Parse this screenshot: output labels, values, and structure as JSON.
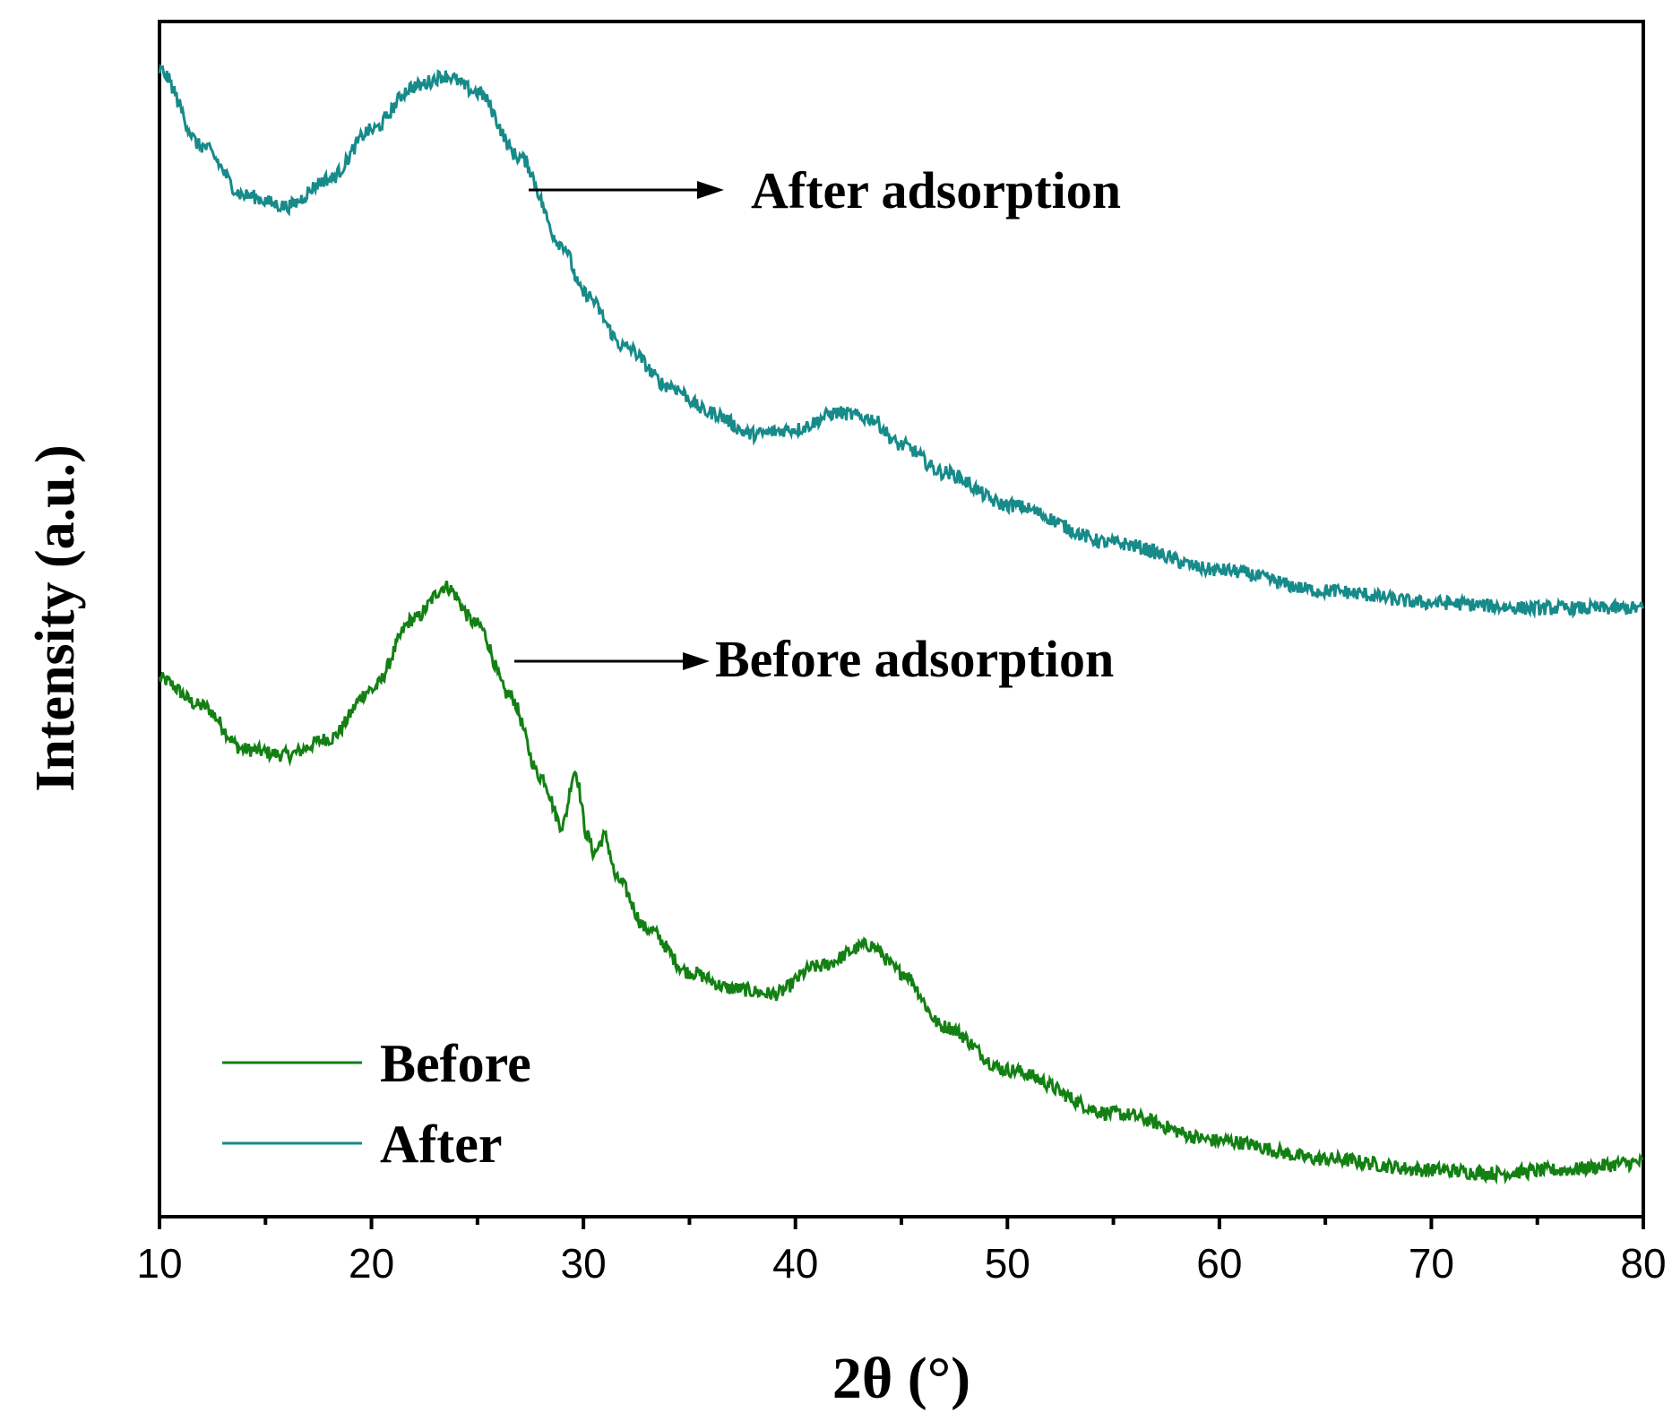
{
  "chart_data": {
    "type": "line",
    "title": "",
    "xlabel": "2θ (°)",
    "ylabel": "Intensity (a.u.)",
    "xlim": [
      10,
      80
    ],
    "ylim": [
      0,
      110
    ],
    "xticks": [
      10,
      20,
      30,
      40,
      50,
      60,
      70,
      80
    ],
    "xtick_labels": [
      "10",
      "20",
      "30",
      "40",
      "50",
      "60",
      "70",
      "80"
    ],
    "yticks": "none",
    "grid": false,
    "legend": {
      "position": "bottom-left",
      "entries": [
        {
          "name": "Before",
          "color": "#138013"
        },
        {
          "name": "After",
          "color": "#178a8a"
        }
      ]
    },
    "series": [
      {
        "name": "Before",
        "color": "#138013",
        "x": [
          10,
          12,
          14,
          16,
          18,
          20,
          22,
          23.5,
          25,
          26.5,
          28,
          29,
          29.6,
          30.2,
          30.5,
          31,
          31.6,
          33,
          35,
          37,
          39,
          41,
          43.5,
          45,
          47,
          50,
          55,
          60,
          65,
          70,
          73,
          76,
          80
        ],
        "y": [
          49.5,
          47,
          43,
          42.5,
          44,
          48.5,
          55,
          58,
          54.5,
          48,
          40.5,
          36,
          41,
          35,
          33.5,
          35,
          31,
          26.5,
          22.5,
          21,
          20.5,
          23,
          25,
          22.5,
          17.5,
          13.5,
          9.5,
          7,
          5.3,
          4.3,
          4,
          4.3,
          5
        ]
      },
      {
        "name": "After",
        "color": "#178a8a",
        "x": [
          10,
          12,
          14,
          16,
          18,
          20,
          22,
          23.5,
          25,
          27,
          29,
          30,
          32,
          34,
          36,
          38,
          40,
          42,
          43.5,
          45,
          47,
          50,
          55,
          60,
          65,
          70,
          75,
          80
        ],
        "y": [
          105.5,
          98.5,
          94,
          93,
          95.5,
          100,
          104,
          105,
          103.5,
          97.5,
          89.5,
          85,
          80,
          76.5,
          74,
          72,
          72.5,
          74,
          73.5,
          71,
          68.5,
          65.5,
          62,
          59.5,
          57.6,
          56.5,
          56,
          56
        ]
      }
    ],
    "annotations": [
      {
        "text": "After adsorption",
        "arrow_from_x": 27.5,
        "arrow_from_y": 96.5
      },
      {
        "text": "Before adsorption",
        "arrow_from_x": 26.8,
        "arrow_from_y": 52
      }
    ]
  }
}
